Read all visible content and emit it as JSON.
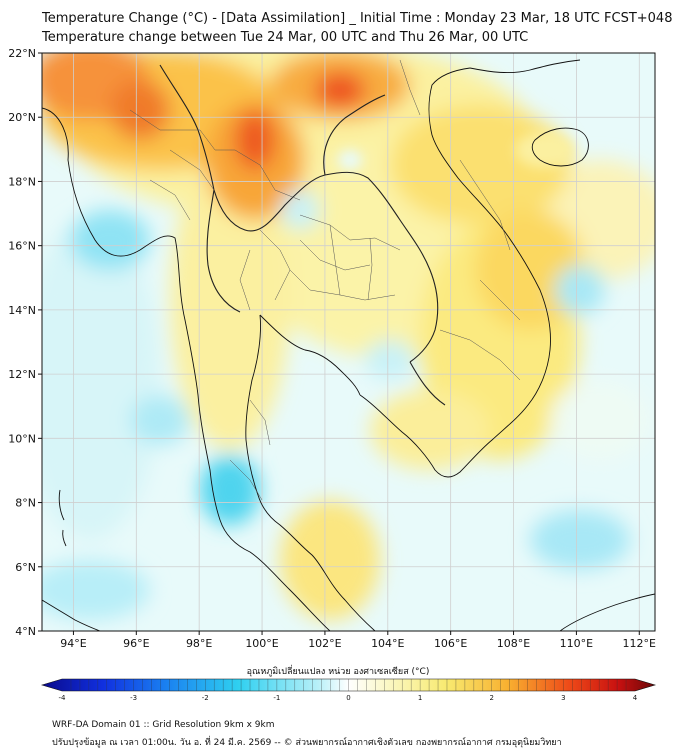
{
  "header": {
    "title_line1": "Temperature Change (°C) - [Data Assimilation] _ Initial Time : Monday 23 Mar, 18 UTC FCST+048",
    "title_line2": "Temperature change between Tue 24 Mar, 00 UTC and Thu 26 Mar, 00 UTC"
  },
  "map": {
    "lat_ticks": [
      "4°N",
      "6°N",
      "8°N",
      "10°N",
      "12°N",
      "14°N",
      "16°N",
      "18°N",
      "20°N",
      "22°N"
    ],
    "lon_ticks": [
      "94°E",
      "96°E",
      "98°E",
      "100°E",
      "102°E",
      "104°E",
      "106°E",
      "108°E",
      "110°E",
      "112°E"
    ],
    "lat_range": [
      4,
      22
    ],
    "lon_range": [
      93,
      112.5
    ]
  },
  "colorbar": {
    "title": "อุณหภูมิเปลี่ยนแปลง หน่วย องศาเซลเซียส (°C)",
    "tick_labels": [
      "-4",
      "-3",
      "-2",
      "-1",
      "0",
      "1",
      "2",
      "3",
      "4"
    ],
    "range": [
      -4,
      4
    ]
  },
  "footer": {
    "line1": "WRF-DA Domain 01 :: Grid Resolution 9km x 9km",
    "line2": "ปรับปรุงข้อมูล ณ เวลา 01:00น. วัน อ. ที่ 24 มี.ค. 2569 -- © ส่วนพยากรณ์อากาศเชิงตัวเลข กองพยากรณ์อากาศ กรมอุตุนิยมวิทยา"
  },
  "colors": {
    "ocean_base": "#eafbfb",
    "warm_yellow": "#fbef8c",
    "warm_orange": "#f8b03a",
    "hot_red": "#ee3a1c",
    "cool_cyan": "#8fe3f4",
    "cold_cyan": "#3fd0ec"
  }
}
